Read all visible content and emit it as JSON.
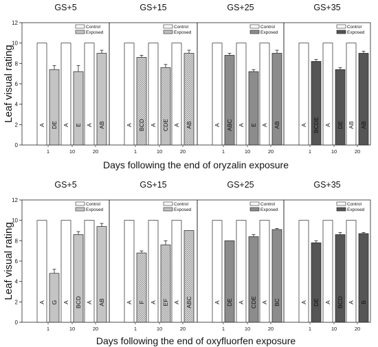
{
  "chart_data": [
    {
      "type": "bar",
      "title": "",
      "xlabel": "Days following the end of oryzalin exposure",
      "ylabel": "Leaf visual rating",
      "ylim": [
        0,
        12
      ],
      "yticks": [
        "0",
        "2",
        "4",
        "6",
        "8",
        "10",
        "12"
      ],
      "categories": [
        "1",
        "10",
        "20"
      ],
      "legend": {
        "labels": [
          "Control",
          "Exposed"
        ],
        "placement": "top-right"
      },
      "grid": false,
      "panels": [
        {
          "title": "GS+5",
          "exposed_style": "light-gray",
          "series": [
            {
              "name": "Control",
              "values": [
                10,
                10,
                10
              ],
              "errors": [
                0,
                0,
                0
              ],
              "letters": [
                "A",
                "A",
                "A"
              ]
            },
            {
              "name": "Exposed",
              "values": [
                7.4,
                7.2,
                9.0
              ],
              "errors": [
                0.4,
                0.6,
                0.3
              ],
              "letters": [
                "DE",
                "E",
                "AB"
              ]
            }
          ]
        },
        {
          "title": "GS+15",
          "exposed_style": "crosshatch",
          "series": [
            {
              "name": "Control",
              "values": [
                10,
                10,
                10
              ],
              "errors": [
                0,
                0,
                0
              ],
              "letters": [
                "A",
                "A",
                "A"
              ]
            },
            {
              "name": "Exposed",
              "values": [
                8.6,
                7.6,
                9.0
              ],
              "errors": [
                0.2,
                0.3,
                0.3
              ],
              "letters": [
                "BCD",
                "CDE",
                "AB"
              ]
            }
          ]
        },
        {
          "title": "GS+25",
          "exposed_style": "medium-gray",
          "series": [
            {
              "name": "Control",
              "values": [
                10,
                10,
                10
              ],
              "errors": [
                0,
                0,
                0
              ],
              "letters": [
                "A",
                "A",
                "A"
              ]
            },
            {
              "name": "Exposed",
              "values": [
                8.8,
                7.2,
                9.0
              ],
              "errors": [
                0.2,
                0.2,
                0.3
              ],
              "letters": [
                "ABC",
                "E",
                "AB"
              ]
            }
          ]
        },
        {
          "title": "GS+35",
          "exposed_style": "dark-gray",
          "series": [
            {
              "name": "Control",
              "values": [
                10,
                10,
                10
              ],
              "errors": [
                0,
                0,
                0
              ],
              "letters": [
                "A",
                "A",
                "AB"
              ]
            },
            {
              "name": "Exposed",
              "values": [
                8.2,
                7.4,
                9.0
              ],
              "errors": [
                0.2,
                0.2,
                0.2
              ],
              "letters": [
                "BCDE",
                "DE",
                "AB"
              ]
            }
          ]
        }
      ]
    },
    {
      "type": "bar",
      "title": "",
      "xlabel": "Days following the end of oxyfluorfen exposure",
      "ylabel": "Leaf visual rating",
      "ylim": [
        0,
        12
      ],
      "yticks": [
        "0",
        "2",
        "4",
        "6",
        "8",
        "10",
        "12"
      ],
      "categories": [
        "1",
        "10",
        "20"
      ],
      "legend": {
        "labels": [
          "Control",
          "Exposed"
        ],
        "placement": "top-right"
      },
      "grid": false,
      "panels": [
        {
          "title": "GS+5",
          "exposed_style": "light-gray",
          "series": [
            {
              "name": "Control",
              "values": [
                10,
                10,
                10
              ],
              "errors": [
                0,
                0,
                0
              ],
              "letters": [
                "A",
                "A",
                "A"
              ]
            },
            {
              "name": "Exposed",
              "values": [
                4.8,
                8.6,
                9.4
              ],
              "errors": [
                0.4,
                0.3,
                0.3
              ],
              "letters": [
                "G",
                "BCD",
                "AB"
              ]
            }
          ]
        },
        {
          "title": "GS+15",
          "exposed_style": "crosshatch",
          "series": [
            {
              "name": "Control",
              "values": [
                10,
                10,
                10
              ],
              "errors": [
                0,
                0,
                0
              ],
              "letters": [
                "A",
                "A",
                "A"
              ]
            },
            {
              "name": "Exposed",
              "values": [
                6.8,
                7.6,
                9.0
              ],
              "errors": [
                0.2,
                0.4,
                0
              ],
              "letters": [
                "F",
                "EF",
                "ABC"
              ]
            }
          ]
        },
        {
          "title": "GS+25",
          "exposed_style": "medium-gray",
          "series": [
            {
              "name": "Control",
              "values": [
                10,
                10,
                10
              ],
              "errors": [
                0,
                0,
                0
              ],
              "letters": [
                "A",
                "A",
                "A"
              ]
            },
            {
              "name": "Exposed",
              "values": [
                8.0,
                8.4,
                9.1
              ],
              "errors": [
                0,
                0.2,
                0.1
              ],
              "letters": [
                "DE",
                "CDE",
                "BC"
              ]
            }
          ]
        },
        {
          "title": "GS+35",
          "exposed_style": "dark-gray",
          "series": [
            {
              "name": "Control",
              "values": [
                10,
                10,
                10
              ],
              "errors": [
                0,
                0,
                0
              ],
              "letters": [
                "A",
                "A",
                "A"
              ]
            },
            {
              "name": "Exposed",
              "values": [
                7.8,
                8.6,
                8.7
              ],
              "errors": [
                0.2,
                0.2,
                0.1
              ],
              "letters": [
                "DE",
                "BCD",
                "B"
              ]
            }
          ]
        }
      ]
    }
  ],
  "colors": {
    "control_fill": "#ffffff",
    "light-gray": "#c4c4c4",
    "crosshatch": "#e4e4e4",
    "medium-gray": "#8c8c8c",
    "dark-gray": "#555555",
    "axis": "#222222"
  }
}
